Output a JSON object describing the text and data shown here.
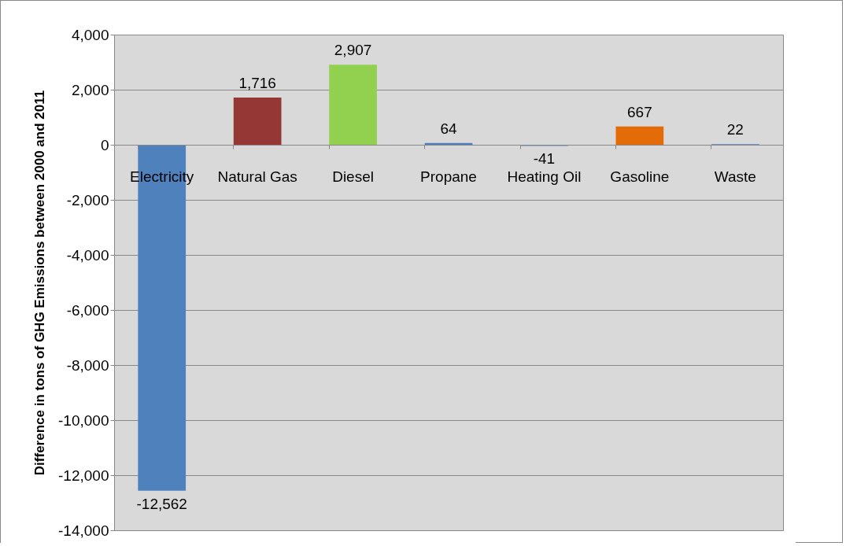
{
  "chart_data": {
    "type": "bar",
    "ylabel": "Difference in tons of GHG Emissions  between 2000 and 2011",
    "categories": [
      "Electricity",
      "Natural Gas",
      "Diesel",
      "Propane",
      "Heating Oil",
      "Gasoline",
      "Waste"
    ],
    "values": [
      -12562,
      1716,
      2907,
      64,
      -41,
      667,
      22
    ],
    "value_labels": [
      "-12,562",
      "1,716",
      "2,907",
      "64",
      "-41",
      "667",
      "22"
    ],
    "colors": [
      "#4f81bd",
      "#953735",
      "#92d050",
      "#4f81bd",
      "#4f81bd",
      "#e36c09",
      "#4f81bd"
    ],
    "ylim": [
      -14000,
      4000
    ],
    "yticks": [
      {
        "value": -14000,
        "label": "-14,000"
      },
      {
        "value": -12000,
        "label": "-12,000"
      },
      {
        "value": -10000,
        "label": "-10,000"
      },
      {
        "value": -8000,
        "label": "-8,000"
      },
      {
        "value": -6000,
        "label": "-6,000"
      },
      {
        "value": -4000,
        "label": "-4,000"
      },
      {
        "value": -2000,
        "label": "-2,000"
      },
      0,
      {
        "value": 2000,
        "label": "2,000"
      },
      {
        "value": 4000,
        "label": "4,000"
      }
    ],
    "grid": "y"
  }
}
